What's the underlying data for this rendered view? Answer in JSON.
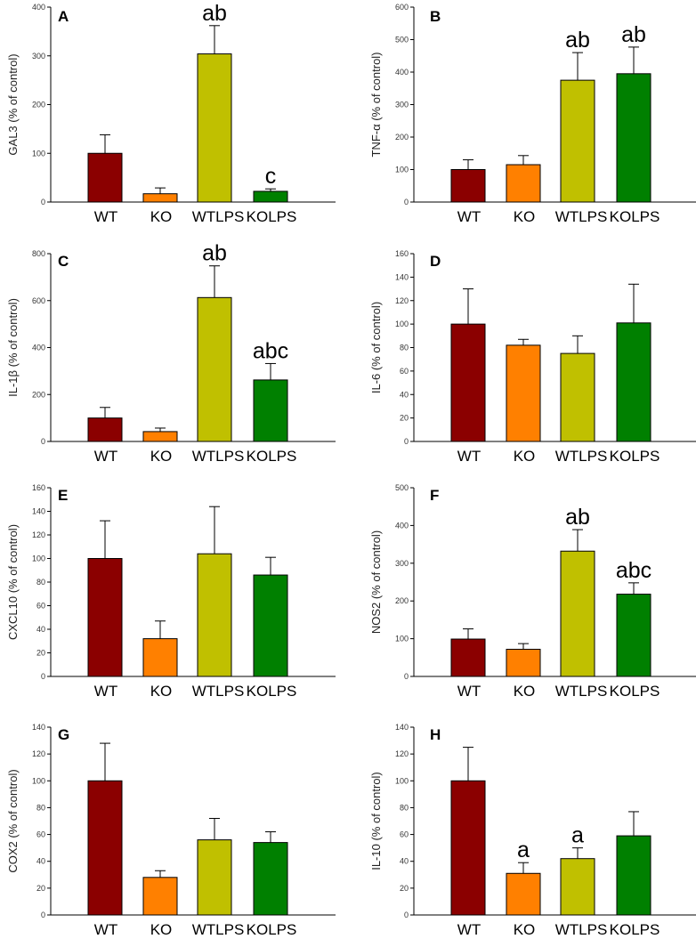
{
  "colors": {
    "WT": "#8b0000",
    "KO": "#ff8000",
    "WTLPS": "#c0c000",
    "KOLPS": "#008000"
  },
  "chart_data": [
    {
      "type": "bar",
      "panel": "A",
      "ylabel": "GAL3 (% of control)",
      "ylim": [
        0,
        400
      ],
      "yticks": [
        "0",
        "100",
        "200",
        "300",
        "400"
      ],
      "categories": [
        "WT",
        "KO",
        "WTLPS",
        "KOLPS"
      ],
      "values": [
        100,
        17,
        304,
        22
      ],
      "errors": [
        38,
        12,
        58,
        5
      ],
      "annotations": [
        "",
        "",
        "ab",
        "c"
      ]
    },
    {
      "type": "bar",
      "panel": "B",
      "ylabel": "TNF-α (% of control)",
      "ylim": [
        0,
        600
      ],
      "yticks": [
        "0",
        "100",
        "200",
        "300",
        "400",
        "500",
        "600"
      ],
      "categories": [
        "WT",
        "KO",
        "WTLPS",
        "KOLPS"
      ],
      "values": [
        100,
        115,
        375,
        395
      ],
      "errors": [
        30,
        28,
        85,
        82
      ],
      "annotations": [
        "",
        "",
        "ab",
        "ab"
      ]
    },
    {
      "type": "bar",
      "panel": "C",
      "ylabel": "IL-1β (% of control)",
      "ylim": [
        0,
        800
      ],
      "yticks": [
        "0",
        "200",
        "400",
        "600",
        "800"
      ],
      "categories": [
        "WT",
        "KO",
        "WTLPS",
        "KOLPS"
      ],
      "values": [
        100,
        42,
        613,
        262
      ],
      "errors": [
        45,
        15,
        135,
        70
      ],
      "annotations": [
        "",
        "",
        "ab",
        "abc"
      ]
    },
    {
      "type": "bar",
      "panel": "D",
      "ylabel": "IL-6 (% of control)",
      "ylim": [
        0,
        160
      ],
      "yticks": [
        "0",
        "20",
        "40",
        "60",
        "80",
        "100",
        "120",
        "140",
        "160"
      ],
      "categories": [
        "WT",
        "KO",
        "WTLPS",
        "KOLPS"
      ],
      "values": [
        100,
        82,
        75,
        101
      ],
      "errors": [
        30,
        5,
        15,
        33
      ],
      "annotations": [
        "",
        "",
        "",
        ""
      ]
    },
    {
      "type": "bar",
      "panel": "E",
      "ylabel": "CXCL10 (% of control)",
      "ylim": [
        0,
        160
      ],
      "yticks": [
        "0",
        "20",
        "40",
        "60",
        "80",
        "100",
        "120",
        "140",
        "160"
      ],
      "categories": [
        "WT",
        "KO",
        "WTLPS",
        "KOLPS"
      ],
      "values": [
        100,
        32,
        104,
        86
      ],
      "errors": [
        32,
        15,
        40,
        15
      ],
      "annotations": [
        "",
        "",
        "",
        ""
      ]
    },
    {
      "type": "bar",
      "panel": "F",
      "ylabel": "NOS2 (% of control)",
      "ylim": [
        0,
        500
      ],
      "yticks": [
        "0",
        "100",
        "200",
        "300",
        "400",
        "500"
      ],
      "categories": [
        "WT",
        "KO",
        "WTLPS",
        "KOLPS"
      ],
      "values": [
        99,
        72,
        332,
        218
      ],
      "errors": [
        27,
        15,
        57,
        30
      ],
      "annotations": [
        "",
        "",
        "ab",
        "abc"
      ]
    },
    {
      "type": "bar",
      "panel": "G",
      "ylabel": "COX2 (% of control)",
      "ylim": [
        0,
        140
      ],
      "yticks": [
        "0",
        "20",
        "40",
        "60",
        "80",
        "100",
        "120",
        "140"
      ],
      "categories": [
        "WT",
        "KO",
        "WTLPS",
        "KOLPS"
      ],
      "values": [
        100,
        28,
        56,
        54
      ],
      "errors": [
        28,
        5,
        16,
        8
      ],
      "annotations": [
        "",
        "",
        "",
        ""
      ]
    },
    {
      "type": "bar",
      "panel": "H",
      "ylabel": "IL-10 (% of control)",
      "ylim": [
        0,
        140
      ],
      "yticks": [
        "0",
        "20",
        "40",
        "60",
        "80",
        "100",
        "120",
        "140"
      ],
      "categories": [
        "WT",
        "KO",
        "WTLPS",
        "KOLPS"
      ],
      "values": [
        100,
        31,
        42,
        59
      ],
      "errors": [
        25,
        8,
        8,
        18
      ],
      "annotations": [
        "",
        "a",
        "a",
        ""
      ]
    }
  ]
}
